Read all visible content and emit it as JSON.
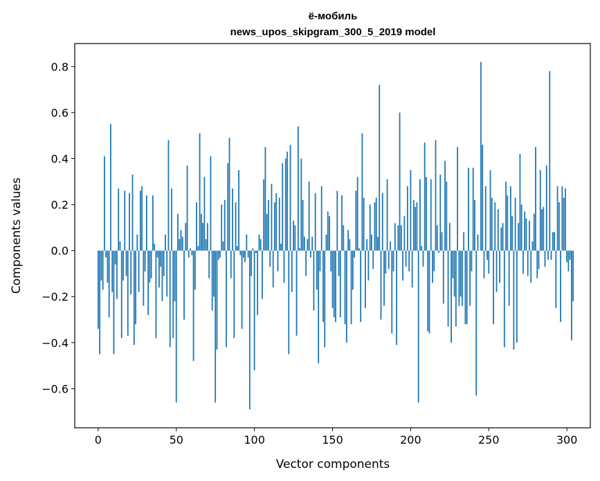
{
  "chart_data": {
    "type": "bar",
    "title": "ё-мобиль",
    "subtitle": "news_upos_skipgram_300_5_2019 model",
    "xlabel": "Vector components",
    "ylabel": "Components values",
    "xlim": [
      -15,
      315
    ],
    "ylim": [
      -0.77,
      0.9
    ],
    "xticks": [
      0,
      50,
      100,
      150,
      200,
      250,
      300
    ],
    "xtick_labels": [
      "0",
      "50",
      "100",
      "150",
      "200",
      "250",
      "300"
    ],
    "yticks": [
      -0.6,
      -0.4,
      -0.2,
      0.0,
      0.2,
      0.4,
      0.6,
      0.8
    ],
    "ytick_labels": [
      "−0.6",
      "−0.4",
      "−0.2",
      "0.0",
      "0.2",
      "0.4",
      "0.6",
      "0.8"
    ],
    "grid": false,
    "bar_color": "#1f77b4",
    "x_start": 0,
    "values": [
      -0.34,
      -0.45,
      -0.13,
      -0.17,
      0.41,
      -0.03,
      -0.14,
      -0.29,
      0.55,
      -0.18,
      -0.45,
      -0.06,
      -0.21,
      0.27,
      0.04,
      -0.38,
      -0.13,
      0.26,
      -0.11,
      -0.37,
      0.25,
      -0.19,
      0.33,
      -0.41,
      -0.32,
      0.07,
      -0.18,
      0.26,
      0.28,
      -0.24,
      -0.09,
      0.24,
      -0.28,
      -0.14,
      -0.12,
      0.24,
      0.03,
      -0.38,
      -0.03,
      -0.16,
      -0.07,
      -0.22,
      -0.11,
      0.07,
      -0.2,
      0.48,
      -0.42,
      0.27,
      -0.38,
      -0.22,
      -0.66,
      0.16,
      0.05,
      0.09,
      0.06,
      -0.3,
      0.12,
      0.37,
      -0.03,
      0.01,
      -0.02,
      -0.48,
      -0.17,
      0.21,
      0.02,
      0.51,
      0.16,
      0.12,
      0.32,
      0.05,
      0.12,
      -0.12,
      0.41,
      -0.26,
      -0.2,
      -0.66,
      -0.43,
      -0.04,
      -0.03,
      0.2,
      0.04,
      0.22,
      -0.42,
      0.38,
      0.49,
      -0.12,
      0.27,
      -0.38,
      0.21,
      0.02,
      0.35,
      -0.02,
      -0.34,
      -0.03,
      -0.05,
      0.07,
      -0.03,
      -0.69,
      -0.11,
      0.01,
      -0.52,
      -0.01,
      -0.28,
      0.07,
      0.05,
      -0.21,
      0.31,
      0.45,
      0.16,
      0.22,
      -0.07,
      0.29,
      -0.16,
      0.21,
      0.25,
      -0.09,
      0.23,
      0.03,
      0.38,
      -0.14,
      0.4,
      0.43,
      -0.45,
      0.46,
      -0.18,
      0.13,
      0.11,
      -0.37,
      0.54,
      0.01,
      0.4,
      0.22,
      0.06,
      -0.11,
      0.05,
      0.3,
      -0.03,
      0.06,
      -0.26,
      0.25,
      -0.17,
      -0.49,
      -0.09,
      0.28,
      -0.31,
      -0.42,
      0.07,
      0.17,
      0.15,
      -0.09,
      -0.25,
      -0.29,
      -0.31,
      0.26,
      -0.11,
      -0.29,
      0.24,
      0.11,
      -0.32,
      -0.4,
      0.09,
      0.05,
      -0.32,
      -0.17,
      -0.03,
      0.26,
      0.32,
      0.01,
      -0.31,
      0.51,
      0.23,
      -0.25,
      0.05,
      -0.13,
      0.2,
      0.07,
      -0.08,
      0.21,
      0.23,
      0.06,
      0.72,
      -0.3,
      0.25,
      -0.24,
      -0.1,
      0.31,
      -0.08,
      0.04,
      -0.36,
      -0.09,
      0.12,
      -0.41,
      0.11,
      0.6,
      0.11,
      -0.13,
      0.15,
      -0.07,
      0.28,
      -0.09,
      0.35,
      -0.16,
      0.22,
      0.19,
      0.21,
      -0.66,
      0.31,
      0.02,
      -0.07,
      0.47,
      0.32,
      -0.35,
      -0.36,
      0.31,
      -0.14,
      -0.09,
      0.48,
      0.11,
      -0.01,
      0.33,
      0.08,
      -0.23,
      0.39,
      0.3,
      -0.33,
      0.12,
      -0.4,
      -0.12,
      -0.2,
      -0.33,
      0.45,
      -0.24,
      -0.2,
      -0.24,
      0.08,
      -0.32,
      -0.32,
      0.36,
      -0.24,
      -0.09,
      0.36,
      0.22,
      -0.63,
      0.07,
      0.0,
      0.82,
      0.46,
      -0.12,
      0.28,
      -0.04,
      -0.1,
      0.35,
      0.23,
      -0.32,
      0.21,
      -0.18,
      0.18,
      -0.14,
      0.1,
      0.12,
      -0.42,
      0.3,
      0.24,
      -0.24,
      0.28,
      0.15,
      -0.43,
      0.23,
      -0.4,
      0.12,
      0.42,
      0.2,
      -0.1,
      0.17,
      0.14,
      -0.11,
      0.13,
      -0.14,
      0.04,
      0.16,
      0.45,
      -0.12,
      -0.08,
      0.35,
      0.18,
      0.19,
      -0.07,
      0.37,
      -0.04,
      0.78,
      -0.04,
      0.08,
      0.08,
      -0.25,
      0.28,
      0.21,
      -0.31,
      0.28,
      0.23,
      0.27,
      -0.05,
      -0.09,
      -0.04,
      -0.39,
      -0.22
    ]
  }
}
